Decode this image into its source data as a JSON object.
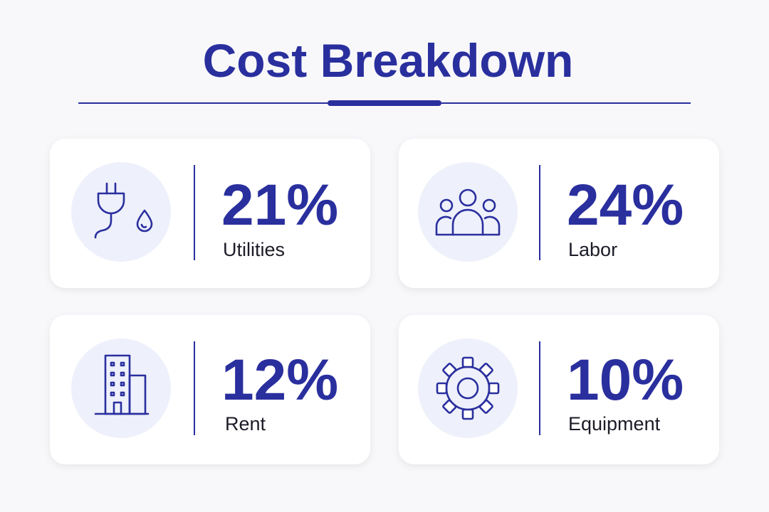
{
  "header": {
    "title": "Cost Breakdown"
  },
  "cards": [
    {
      "value": "21%",
      "label": "Utilities"
    },
    {
      "value": "24%",
      "label": "Labor"
    },
    {
      "value": "12%",
      "label": "Rent"
    },
    {
      "value": "10%",
      "label": "Equipment"
    }
  ]
}
